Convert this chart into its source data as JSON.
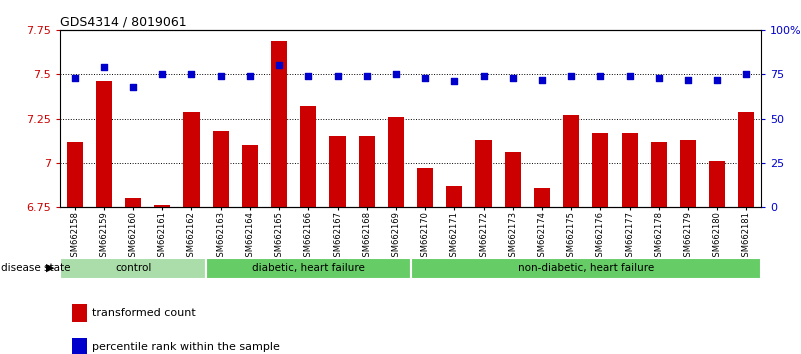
{
  "title": "GDS4314 / 8019061",
  "samples": [
    "GSM662158",
    "GSM662159",
    "GSM662160",
    "GSM662161",
    "GSM662162",
    "GSM662163",
    "GSM662164",
    "GSM662165",
    "GSM662166",
    "GSM662167",
    "GSM662168",
    "GSM662169",
    "GSM662170",
    "GSM662171",
    "GSM662172",
    "GSM662173",
    "GSM662174",
    "GSM662175",
    "GSM662176",
    "GSM662177",
    "GSM662178",
    "GSM662179",
    "GSM662180",
    "GSM662181"
  ],
  "bar_values": [
    7.12,
    7.46,
    6.8,
    6.76,
    7.29,
    7.18,
    7.1,
    7.69,
    7.32,
    7.15,
    7.15,
    7.26,
    6.97,
    6.87,
    7.13,
    7.06,
    6.86,
    7.27,
    7.17,
    7.17,
    7.12,
    7.13,
    7.01,
    7.29
  ],
  "percentile_values": [
    73,
    79,
    68,
    75,
    75,
    74,
    74,
    80,
    74,
    74,
    74,
    75,
    73,
    71,
    74,
    73,
    72,
    74,
    74,
    74,
    73,
    72,
    72,
    75
  ],
  "ylim_left": [
    6.75,
    7.75
  ],
  "ylim_right": [
    0,
    100
  ],
  "yticks_left": [
    6.75,
    7.0,
    7.25,
    7.5,
    7.75
  ],
  "yticks_right": [
    0,
    25,
    50,
    75,
    100
  ],
  "ytick_labels_left": [
    "6.75",
    "7",
    "7.25",
    "7.5",
    "7.75"
  ],
  "ytick_labels_right": [
    "0",
    "25",
    "50",
    "75",
    "100%"
  ],
  "bar_color": "#cc0000",
  "dot_color": "#0000cc",
  "group_info": [
    {
      "label": "control",
      "start": 0,
      "end": 4,
      "color": "#aaddaa"
    },
    {
      "label": "diabetic, heart failure",
      "start": 5,
      "end": 11,
      "color": "#66cc66"
    },
    {
      "label": "non-diabetic, heart failure",
      "start": 12,
      "end": 23,
      "color": "#66cc66"
    }
  ],
  "group_boundaries": [
    4.5,
    11.5
  ],
  "legend_bar_label": "transformed count",
  "legend_dot_label": "percentile rank within the sample",
  "disease_state_label": "disease state",
  "background_color": "#ffffff",
  "plot_bg_color": "#ffffff"
}
